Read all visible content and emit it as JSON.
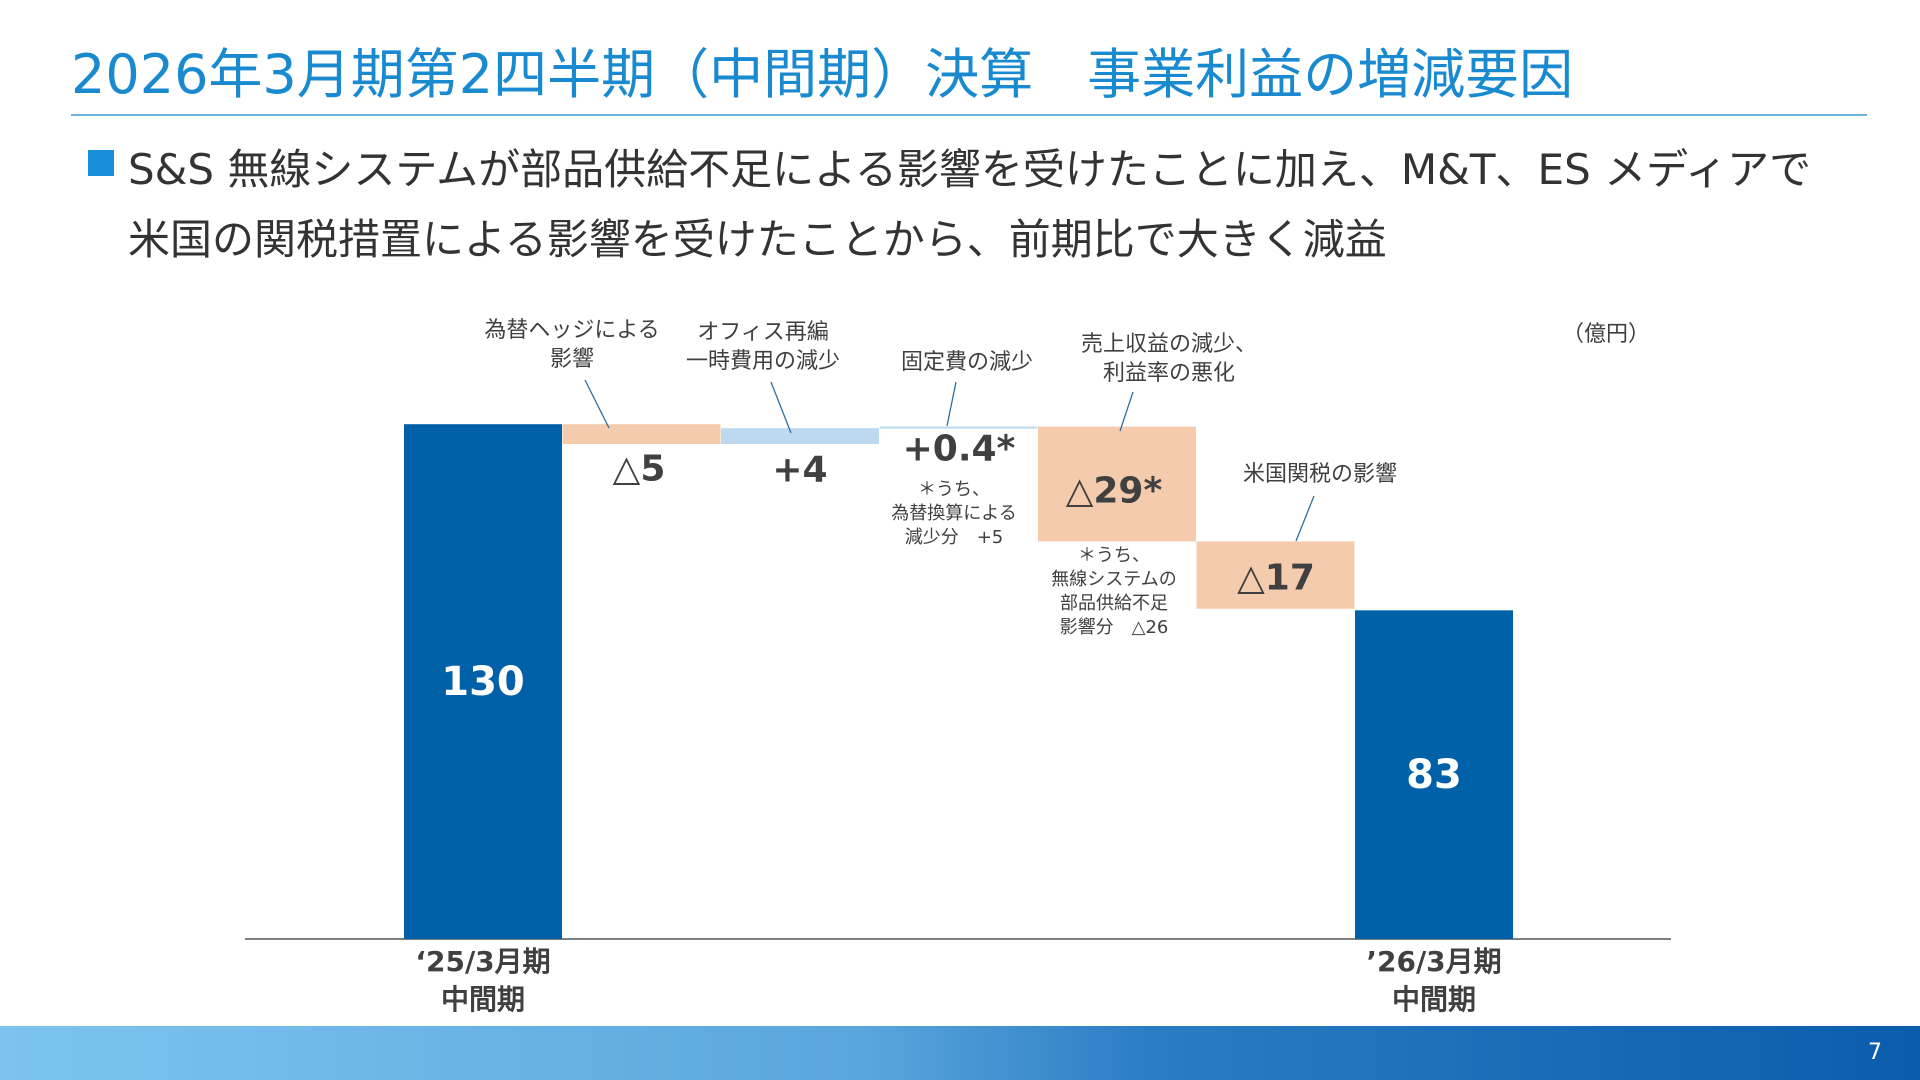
{
  "header": {
    "title": "2026年3月期第2四半期（中間期）決算　事業利益の増減要因"
  },
  "summary": {
    "line1": "S&S 無線システムが部品供給不足による影響を受けたことに加え、M&T、ES メディアで",
    "line2": "米国の関税措置による影響を受けたことから、前期比で大きく減益"
  },
  "colors": {
    "title": "#1a8ad0",
    "total": "#0060a8",
    "decrease": "#f5cbad",
    "increase": "#bcd9ef",
    "footer": "#0b5cab"
  },
  "chart_data": {
    "type": "waterfall",
    "unit": "（億円）",
    "steps": [
      {
        "kind": "total",
        "value": 130,
        "label": "130",
        "xlabel": [
          "‘25/3月期",
          "中間期"
        ]
      },
      {
        "kind": "delta",
        "value": -5,
        "label": "△5",
        "annotation": [
          "為替ヘッジによる",
          "影響"
        ]
      },
      {
        "kind": "delta",
        "value": 4,
        "label": "+4",
        "annotation": [
          "オフィス再編",
          "一時費用の減少"
        ]
      },
      {
        "kind": "delta",
        "value": 0.4,
        "label": "+0.4*",
        "annotation": [
          "固定費の減少"
        ],
        "note": [
          "＊うち、",
          "為替換算による",
          "減少分　+5"
        ]
      },
      {
        "kind": "delta",
        "value": -29,
        "label": "△29*",
        "annotation": [
          "売上収益の減少、",
          "利益率の悪化"
        ],
        "note": [
          "＊うち、",
          "無線システムの",
          "部品供給不足",
          "影響分　△26"
        ]
      },
      {
        "kind": "delta",
        "value": -17,
        "label": "△17",
        "annotation": [
          "米国関税の影響"
        ]
      },
      {
        "kind": "total",
        "value": 83,
        "label": "83",
        "xlabel": [
          "’26/3月期",
          "中間期"
        ]
      }
    ]
  },
  "footer": {
    "page": "7"
  }
}
